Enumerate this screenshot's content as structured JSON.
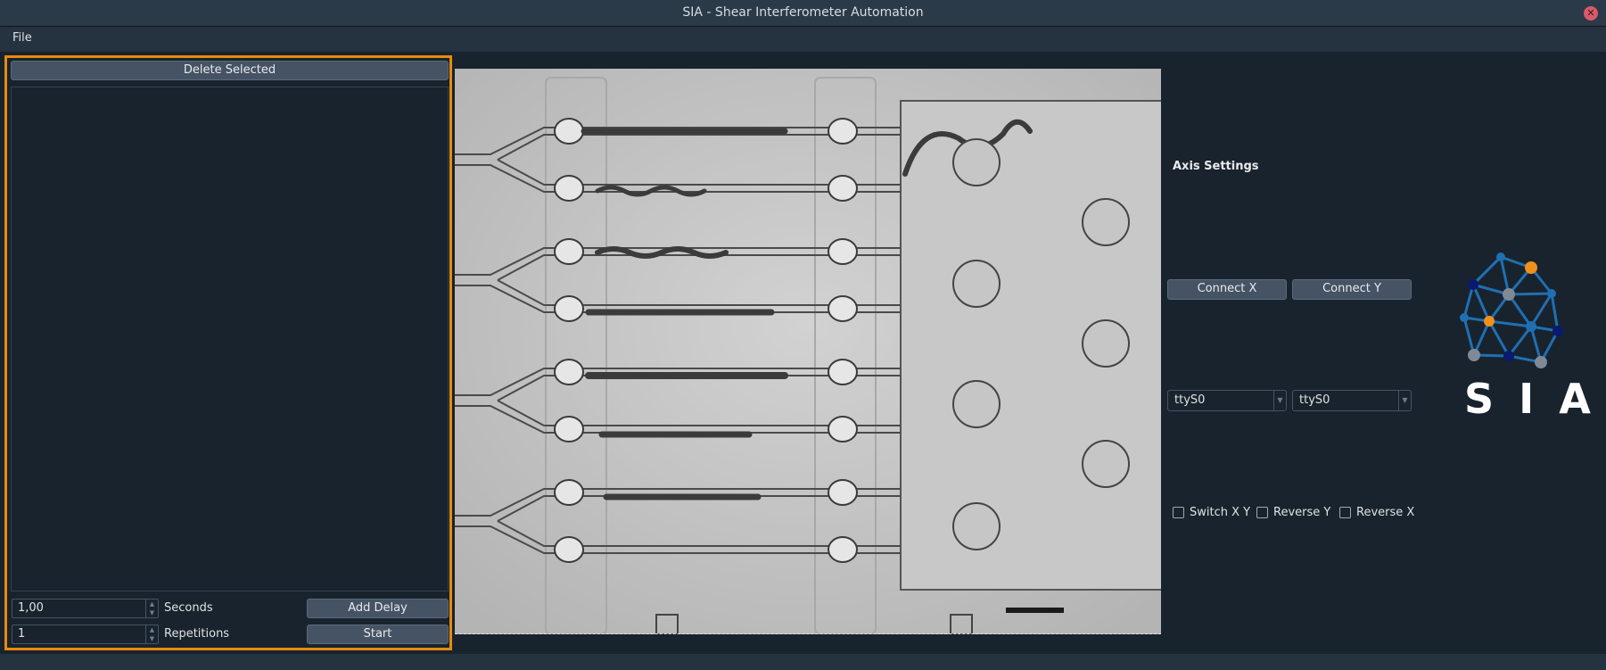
{
  "window": {
    "title": "SIA - Shear Interferometer Automation",
    "close_glyph": "✕"
  },
  "menu": {
    "items": [
      {
        "label": "File"
      }
    ]
  },
  "sequence": {
    "delete_label": "Delete Selected",
    "seconds_value": "1,00",
    "seconds_label": "Seconds",
    "add_delay_label": "Add Delay",
    "repetitions_value": "1",
    "repetitions_label": "Repetitions",
    "start_label": "Start"
  },
  "axis": {
    "title": "Axis Settings",
    "connect_x_label": "Connect X",
    "connect_y_label": "Connect Y",
    "port_x": "ttyS0",
    "port_y": "ttyS0",
    "switch_xy_label": "Switch X Y",
    "reverse_y_label": "Reverse Y",
    "reverse_x_label": "Reverse X"
  },
  "logo": {
    "text": "SIA"
  },
  "colors": {
    "accent": "#e98a0c",
    "background": "#19232d",
    "button": "#455364",
    "logo_blue": "#1f6fb2",
    "logo_orange": "#f0901a"
  }
}
